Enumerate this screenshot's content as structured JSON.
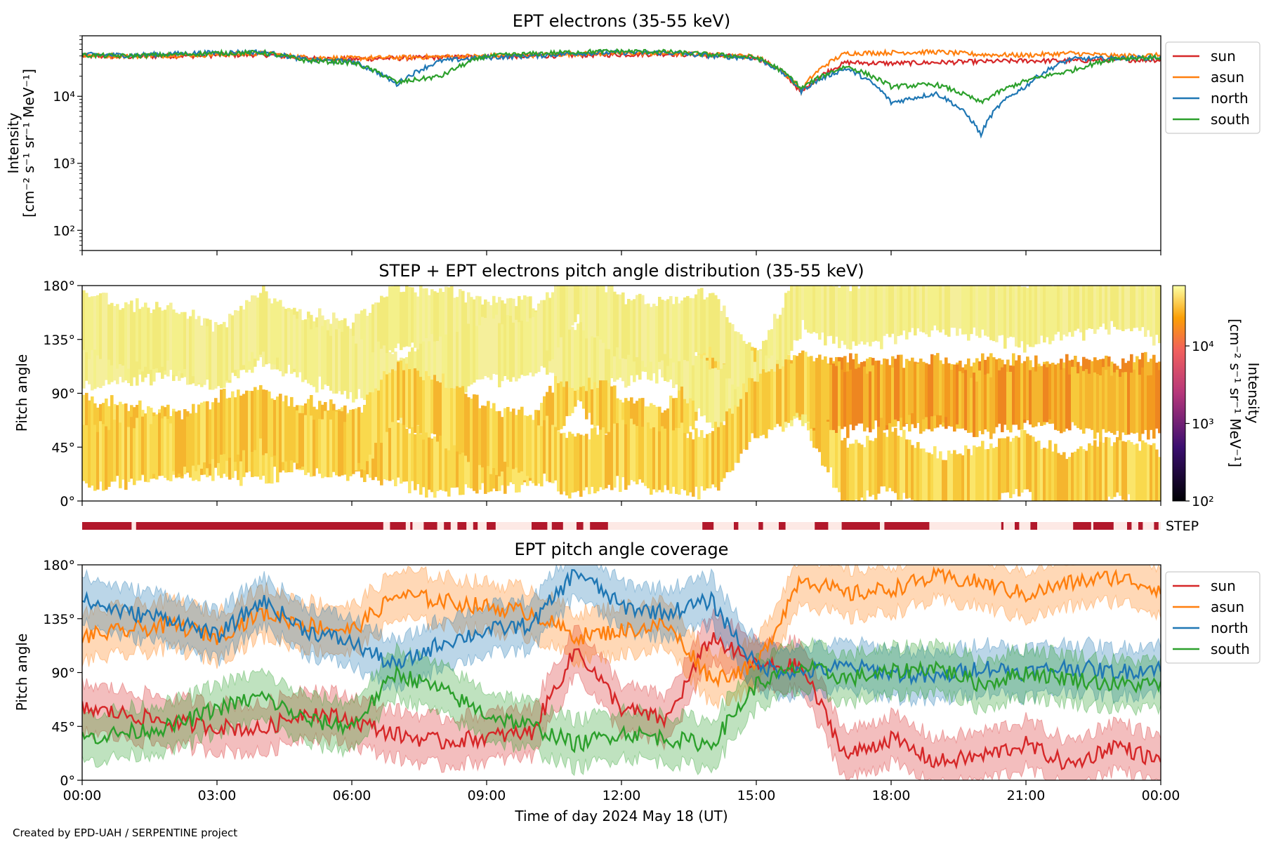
{
  "footer": "Created by EPD-UAH / SERPENTINE project",
  "chart_data": [
    {
      "type": "line",
      "title": "EPT electrons (35-55 keV)",
      "ylabel": "Intensity",
      "yunit": "[cm⁻² s⁻¹ sr⁻¹ MeV⁻¹]",
      "yscale": "log",
      "ylim": [
        50,
        80000
      ],
      "yticks": [
        100,
        1000,
        10000
      ],
      "ytick_labels": [
        "10²",
        "10³",
        "10⁴"
      ],
      "x": [
        0,
        1,
        2,
        3,
        4,
        5,
        6,
        7,
        8,
        9,
        10,
        11,
        12,
        13,
        14,
        15,
        16,
        17,
        18,
        19,
        20,
        21,
        22,
        23,
        24
      ],
      "xlabel": "",
      "legend_position": "outside-right",
      "series": [
        {
          "name": "sun",
          "color": "#d62728",
          "values": [
            40000,
            39000,
            40000,
            41000,
            42000,
            37000,
            36000,
            37000,
            38000,
            39000,
            40000,
            41000,
            42000,
            43000,
            41000,
            38000,
            11000,
            32000,
            31000,
            32000,
            33000,
            34000,
            34000,
            35000,
            35000
          ]
        },
        {
          "name": "asun",
          "color": "#ff7f0e",
          "values": [
            41000,
            40000,
            41000,
            42000,
            44000,
            38000,
            37000,
            38000,
            39000,
            40000,
            41000,
            43000,
            44000,
            44000,
            42000,
            39000,
            12000,
            44000,
            45000,
            46000,
            42000,
            41000,
            44000,
            40000,
            41000
          ]
        },
        {
          "name": "north",
          "color": "#1f77b4",
          "values": [
            42000,
            41000,
            43000,
            45000,
            46000,
            35000,
            33000,
            15000,
            34000,
            38000,
            40000,
            44000,
            45000,
            45000,
            40000,
            37000,
            12000,
            26000,
            8000,
            11000,
            2600,
            14000,
            36000,
            37000,
            38000
          ]
        },
        {
          "name": "south",
          "color": "#2ca02c",
          "values": [
            41000,
            40000,
            42000,
            44000,
            45000,
            34000,
            32000,
            16000,
            20000,
            40000,
            43000,
            46000,
            47000,
            46000,
            42000,
            38000,
            13000,
            28000,
            14000,
            15000,
            8000,
            17000,
            24000,
            37000,
            38000
          ]
        }
      ]
    },
    {
      "type": "heatmap",
      "title": "STEP + EPT electrons pitch angle distribution (35-55 keV)",
      "ylabel": "Pitch angle",
      "ylim": [
        0,
        180
      ],
      "ytick_labels": [
        "0°",
        "45°",
        "90°",
        "135°",
        "180°"
      ],
      "colorbar_label": "Intensity",
      "colorbar_unit": "[cm⁻² s⁻¹ sr⁻¹ MeV⁻¹]",
      "colorbar_scale": "log",
      "colorbar_range": [
        100,
        60000
      ],
      "colorbar_ticks": [
        100,
        1000,
        10000
      ],
      "colorbar_tick_labels": [
        "10²",
        "10³",
        "10⁴"
      ]
    },
    {
      "type": "bar",
      "label": "STEP",
      "color": "#b2182b",
      "background": "#fde9e5",
      "segments_hours": [
        [
          0.0,
          1.1
        ],
        [
          1.2,
          6.7
        ],
        [
          6.85,
          7.2
        ],
        [
          7.3,
          7.35
        ],
        [
          7.6,
          7.9
        ],
        [
          8.05,
          8.2
        ],
        [
          8.35,
          8.55
        ],
        [
          8.7,
          8.8
        ],
        [
          9.0,
          9.2
        ],
        [
          10.0,
          10.35
        ],
        [
          10.45,
          10.7
        ],
        [
          11.0,
          11.15
        ],
        [
          11.3,
          11.7
        ],
        [
          13.8,
          14.05
        ],
        [
          14.5,
          14.6
        ],
        [
          15.05,
          15.15
        ],
        [
          15.5,
          15.65
        ],
        [
          16.3,
          16.6
        ],
        [
          16.9,
          17.75
        ],
        [
          17.85,
          18.85
        ],
        [
          20.45,
          20.5
        ],
        [
          20.75,
          20.85
        ],
        [
          21.1,
          21.25
        ],
        [
          22.05,
          22.45
        ],
        [
          22.5,
          22.95
        ],
        [
          23.25,
          23.35
        ],
        [
          23.5,
          23.6
        ],
        [
          23.85,
          23.95
        ],
        [
          24.0,
          24.0
        ]
      ]
    },
    {
      "type": "line",
      "title": "EPT pitch angle coverage",
      "ylabel": "Pitch angle",
      "ylim": [
        0,
        180
      ],
      "ytick_labels": [
        "0°",
        "45°",
        "90°",
        "135°",
        "180°"
      ],
      "x": [
        0,
        1,
        2,
        3,
        4,
        5,
        6,
        7,
        8,
        9,
        10,
        11,
        12,
        13,
        14,
        15,
        16,
        17,
        18,
        19,
        20,
        21,
        22,
        23,
        24
      ],
      "xlabel": "Time of day 2024 May 18 (UT)",
      "xtick_labels": [
        "00:00",
        "03:00",
        "06:00",
        "09:00",
        "12:00",
        "15:00",
        "18:00",
        "21:00",
        "00:00"
      ],
      "xtick_hours": [
        0,
        3,
        6,
        9,
        12,
        15,
        18,
        21,
        24
      ],
      "legend_position": "outside-right",
      "band_halfwidth": 20,
      "series": [
        {
          "name": "sun",
          "color": "#d62728",
          "values": [
            60,
            55,
            48,
            45,
            42,
            58,
            50,
            38,
            32,
            36,
            40,
            110,
            60,
            50,
            120,
            95,
            95,
            20,
            35,
            15,
            20,
            30,
            12,
            30,
            15
          ]
        },
        {
          "name": "asun",
          "color": "#ff7f0e",
          "values": [
            120,
            125,
            130,
            120,
            140,
            130,
            125,
            155,
            150,
            145,
            140,
            120,
            125,
            130,
            85,
            95,
            170,
            155,
            160,
            170,
            165,
            155,
            165,
            170,
            160
          ]
        },
        {
          "name": "north",
          "color": "#1f77b4",
          "values": [
            150,
            140,
            135,
            120,
            150,
            125,
            115,
            95,
            115,
            125,
            130,
            175,
            145,
            140,
            150,
            95,
            90,
            95,
            90,
            85,
            95,
            90,
            95,
            90,
            95
          ]
        },
        {
          "name": "south",
          "color": "#2ca02c",
          "values": [
            35,
            40,
            45,
            60,
            70,
            50,
            45,
            90,
            75,
            55,
            45,
            30,
            40,
            35,
            30,
            80,
            95,
            85,
            90,
            95,
            80,
            90,
            85,
            80,
            80
          ]
        }
      ]
    }
  ]
}
